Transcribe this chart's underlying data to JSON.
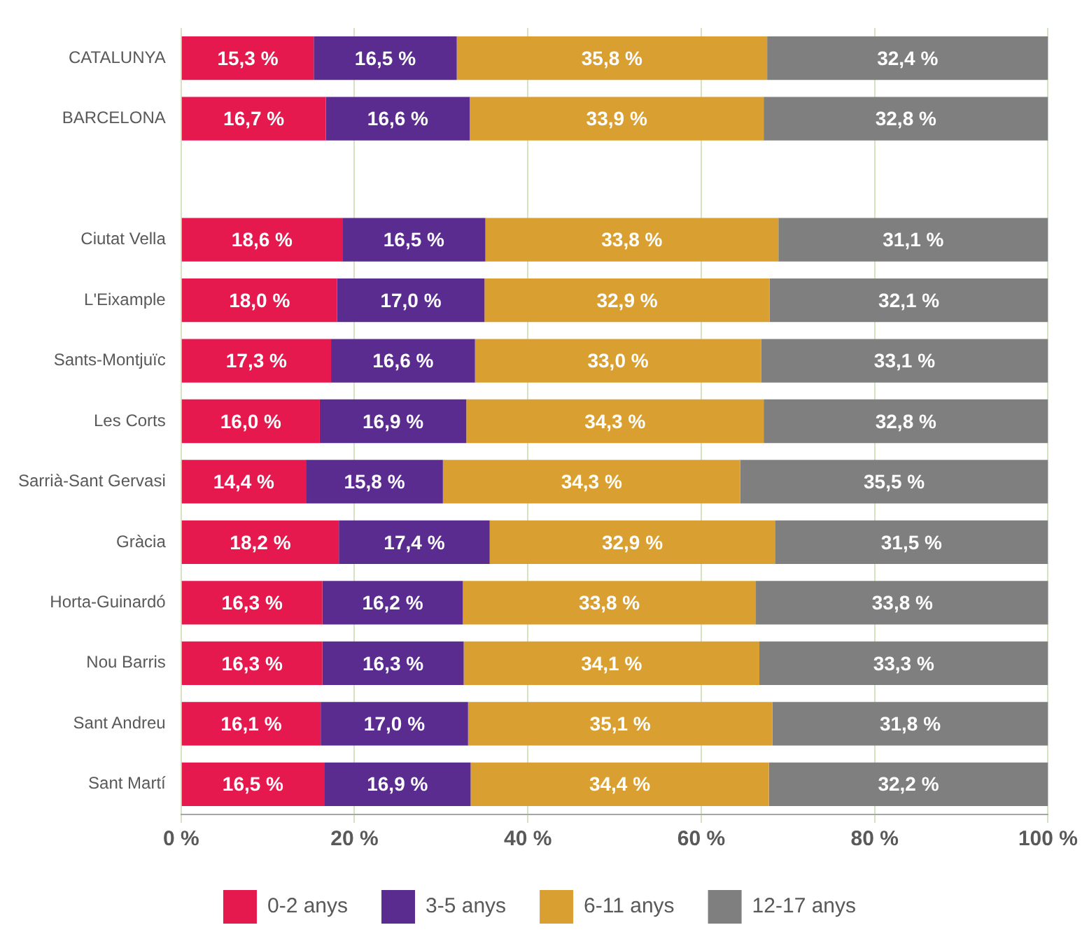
{
  "chart_data": {
    "type": "bar",
    "orientation": "horizontal",
    "stacked": true,
    "categories": [
      "CATALUNYA",
      "BARCELONA",
      null,
      "Ciutat Vella",
      "L'Eixample",
      "Sants-Montjuïc",
      "Les Corts",
      "Sarrià-Sant Gervasi",
      "Gràcia",
      "Horta-Guinardó",
      "Nou Barris",
      "Sant Andreu",
      "Sant Martí"
    ],
    "series": [
      {
        "name": "0-2 anys",
        "color": "#e6194f",
        "values": [
          15.3,
          16.7,
          null,
          18.6,
          18.0,
          17.3,
          16.0,
          14.4,
          18.2,
          16.3,
          16.3,
          16.1,
          16.5
        ],
        "value_labels": [
          "15,3 %",
          "16,7 %",
          null,
          "18,6 %",
          "18,0 %",
          "17,3 %",
          "16,0 %",
          "14,4 %",
          "18,2 %",
          "16,3 %",
          "16,3 %",
          "16,1 %",
          "16,5 %"
        ]
      },
      {
        "name": "3-5 anys",
        "color": "#5b2c8f",
        "values": [
          16.5,
          16.6,
          null,
          16.5,
          17.0,
          16.6,
          16.9,
          15.8,
          17.4,
          16.2,
          16.3,
          17.0,
          16.9
        ],
        "value_labels": [
          "16,5 %",
          "16,6 %",
          null,
          "16,5 %",
          "17,0 %",
          "16,6 %",
          "16,9 %",
          "15,8 %",
          "17,4 %",
          "16,2 %",
          "16,3 %",
          "17,0 %",
          "16,9 %"
        ]
      },
      {
        "name": "6-11 anys",
        "color": "#d9a031",
        "values": [
          35.8,
          33.9,
          null,
          33.8,
          32.9,
          33.0,
          34.3,
          34.3,
          32.9,
          33.8,
          34.1,
          35.1,
          34.4
        ],
        "value_labels": [
          "35,8 %",
          "33,9 %",
          null,
          "33,8 %",
          "32,9 %",
          "33,0 %",
          "34,3 %",
          "34,3 %",
          "32,9 %",
          "33,8 %",
          "34,1 %",
          "35,1 %",
          "34,4 %"
        ]
      },
      {
        "name": "12-17 anys",
        "color": "#7f7f7f",
        "values": [
          32.4,
          32.8,
          null,
          31.1,
          32.1,
          33.1,
          32.8,
          35.5,
          31.5,
          33.8,
          33.3,
          31.8,
          32.2
        ],
        "value_labels": [
          "32,4 %",
          "32,8 %",
          null,
          "31,1 %",
          "32,1 %",
          "33,1 %",
          "32,8 %",
          "35,5 %",
          "31,5 %",
          "33,8 %",
          "33,3 %",
          "31,8 %",
          "32,2 %"
        ]
      }
    ],
    "xlim": [
      0,
      100
    ],
    "xticks": [
      {
        "value": 0,
        "label": "0 %"
      },
      {
        "value": 20,
        "label": "20 %"
      },
      {
        "value": 40,
        "label": "40 %"
      },
      {
        "value": 60,
        "label": "60 %"
      },
      {
        "value": 80,
        "label": "80 %"
      },
      {
        "value": 100,
        "label": "100 %"
      }
    ],
    "grid": "x",
    "legend": "bottom"
  }
}
